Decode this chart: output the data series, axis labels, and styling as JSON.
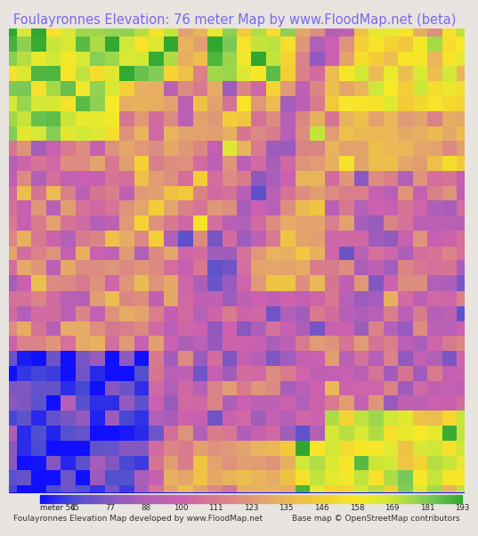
{
  "title": "Foulayronnes Elevation: 76 meter Map by www.FloodMap.net (beta)",
  "title_color": "#7b68ee",
  "title_fontsize": 10.5,
  "bg_color": "#e8e4e0",
  "colorbar_values": [
    54,
    65,
    77,
    88,
    100,
    111,
    123,
    135,
    146,
    158,
    169,
    181,
    193
  ],
  "colorbar_colors_cb": [
    "#2828ff",
    "#6060cc",
    "#9060b8",
    "#b060b8",
    "#cc60b0",
    "#d87890",
    "#e09878",
    "#eab858",
    "#f2cc38",
    "#f8e828",
    "#d0e838",
    "#80cc58",
    "#38b038"
  ],
  "footer_left": "Foulayronnes Elevation Map developed by www.FloodMap.net",
  "footer_right": "Base map © OpenStreetMap contributors",
  "footer_fontsize": 6.5
}
